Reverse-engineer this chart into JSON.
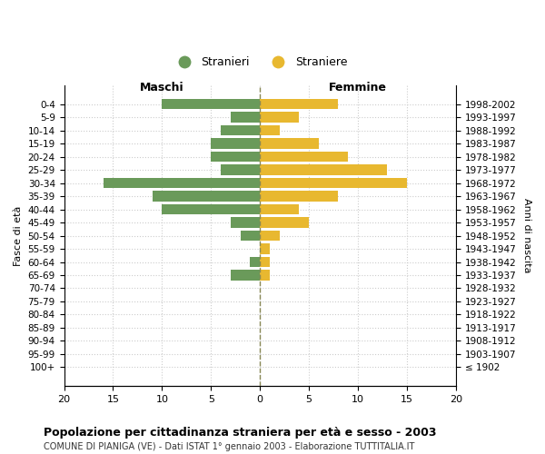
{
  "age_groups": [
    "100+",
    "95-99",
    "90-94",
    "85-89",
    "80-84",
    "75-79",
    "70-74",
    "65-69",
    "60-64",
    "55-59",
    "50-54",
    "45-49",
    "40-44",
    "35-39",
    "30-34",
    "25-29",
    "20-24",
    "15-19",
    "10-14",
    "5-9",
    "0-4"
  ],
  "birth_years": [
    "≤ 1902",
    "1903-1907",
    "1908-1912",
    "1913-1917",
    "1918-1922",
    "1923-1927",
    "1928-1932",
    "1933-1937",
    "1938-1942",
    "1943-1947",
    "1948-1952",
    "1953-1957",
    "1958-1962",
    "1963-1967",
    "1968-1972",
    "1973-1977",
    "1978-1982",
    "1983-1987",
    "1988-1992",
    "1993-1997",
    "1998-2002"
  ],
  "maschi": [
    0,
    0,
    0,
    0,
    0,
    0,
    0,
    3,
    1,
    0,
    2,
    3,
    10,
    11,
    16,
    4,
    5,
    5,
    4,
    3,
    10
  ],
  "femmine": [
    0,
    0,
    0,
    0,
    0,
    0,
    0,
    1,
    1,
    1,
    2,
    5,
    4,
    8,
    15,
    13,
    9,
    6,
    2,
    4,
    8
  ],
  "male_color": "#6a9a5a",
  "female_color": "#e8b830",
  "title": "Popolazione per cittadinanza straniera per età e sesso - 2003",
  "subtitle": "COMUNE DI PIANIGA (VE) - Dati ISTAT 1° gennaio 2003 - Elaborazione TUTTITALIA.IT",
  "xlabel_left": "Maschi",
  "xlabel_right": "Femmine",
  "ylabel_left": "Fasce di età",
  "ylabel_right": "Anni di nascita",
  "legend_male": "Stranieri",
  "legend_female": "Straniere",
  "xlim": 20,
  "bg_color": "#ffffff",
  "grid_color": "#cccccc",
  "bar_height": 0.8
}
